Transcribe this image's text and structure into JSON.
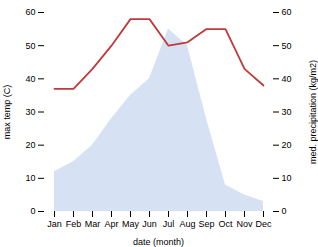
{
  "chart_data": {
    "type": "line",
    "categories": [
      "Jan",
      "Feb",
      "Mar",
      "Apr",
      "May",
      "Jun",
      "Jul",
      "Aug",
      "Sep",
      "Oct",
      "Nov",
      "Dec"
    ],
    "series": [
      {
        "type": "area",
        "color": "#c5d4f0",
        "axis": "y2",
        "values": [
          12,
          15,
          20,
          28,
          35,
          40,
          55,
          50,
          28,
          8,
          5,
          3
        ]
      },
      {
        "type": "line",
        "color": "#c0393b",
        "values": [
          37,
          37,
          43,
          50,
          58,
          58,
          50,
          51,
          55,
          55,
          43,
          38
        ]
      }
    ],
    "xlabel": "date (month)",
    "ylabel": "max temp (C)",
    "y2label": "med. precipitation (kg/m2)",
    "ylim": [
      0,
      60
    ],
    "yticks": [
      0,
      10,
      20,
      30,
      40,
      50,
      60
    ],
    "y2lim": [
      0,
      60
    ],
    "y2ticks": [
      0,
      10,
      20,
      30,
      40,
      50,
      60
    ],
    "grid": false
  }
}
